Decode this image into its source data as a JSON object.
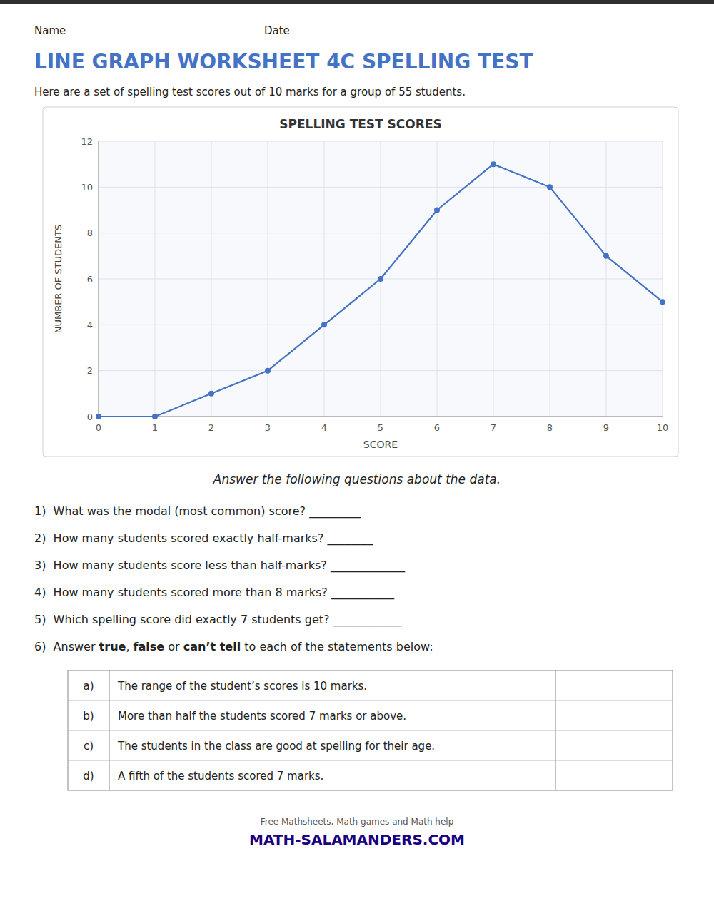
{
  "chart_data": {
    "type": "line",
    "title": "SPELLING TEST SCORES",
    "x_label": "SCORE",
    "y_label": "NUMBER OF STUDENTS",
    "x": [
      0,
      1,
      2,
      3,
      4,
      5,
      6,
      7,
      8,
      9,
      10
    ],
    "values": [
      0,
      0,
      1,
      2,
      4,
      6,
      9,
      11,
      10,
      7,
      5
    ],
    "xlim": [
      0,
      10
    ],
    "ylim": [
      0,
      12
    ],
    "xticks": [
      0,
      1,
      2,
      3,
      4,
      5,
      6,
      7,
      8,
      9,
      10
    ],
    "yticks": [
      0,
      2,
      4,
      6,
      8,
      10,
      12
    ],
    "grid": true,
    "color": "#4472C4",
    "marker": "circle"
  },
  "worksheet": {
    "name_label": "Name",
    "date_label": "Date",
    "title": "LINE GRAPH WORKSHEET 4C SPELLING TEST",
    "title_color": "#4472C4",
    "subtitle": "Here are a set of spelling test scores out of 10 marks for a group of 55 students.",
    "instruction": "Answer the following questions about the data.",
    "questions": [
      "1)  What was the modal (most common) score? _________",
      "2)  How many students scored exactly half-marks? ________",
      "3)  How many students score less than half-marks? _____________",
      "4)  How many students scored more than 8 marks? ___________",
      "5)  Which spelling score did exactly 7 students get? ____________"
    ],
    "statement_prompt": [
      "6)  Answer ",
      "true",
      ", ",
      "false",
      " or ",
      "can’t tell",
      " to each of the statements below:"
    ],
    "statements": [
      [
        "a)",
        "The range of the student’s scores is 10 marks."
      ],
      [
        "b)",
        "More than half the students scored 7 marks or above."
      ],
      [
        "c)",
        "The students in the class are good at spelling for their age."
      ],
      [
        "d)",
        "A fifth of the students scored 7 marks."
      ]
    ],
    "footer_text": "Free Mathsheets, Math games and Math help",
    "footer_url": "MATH-SALAMANDERS.COM"
  }
}
